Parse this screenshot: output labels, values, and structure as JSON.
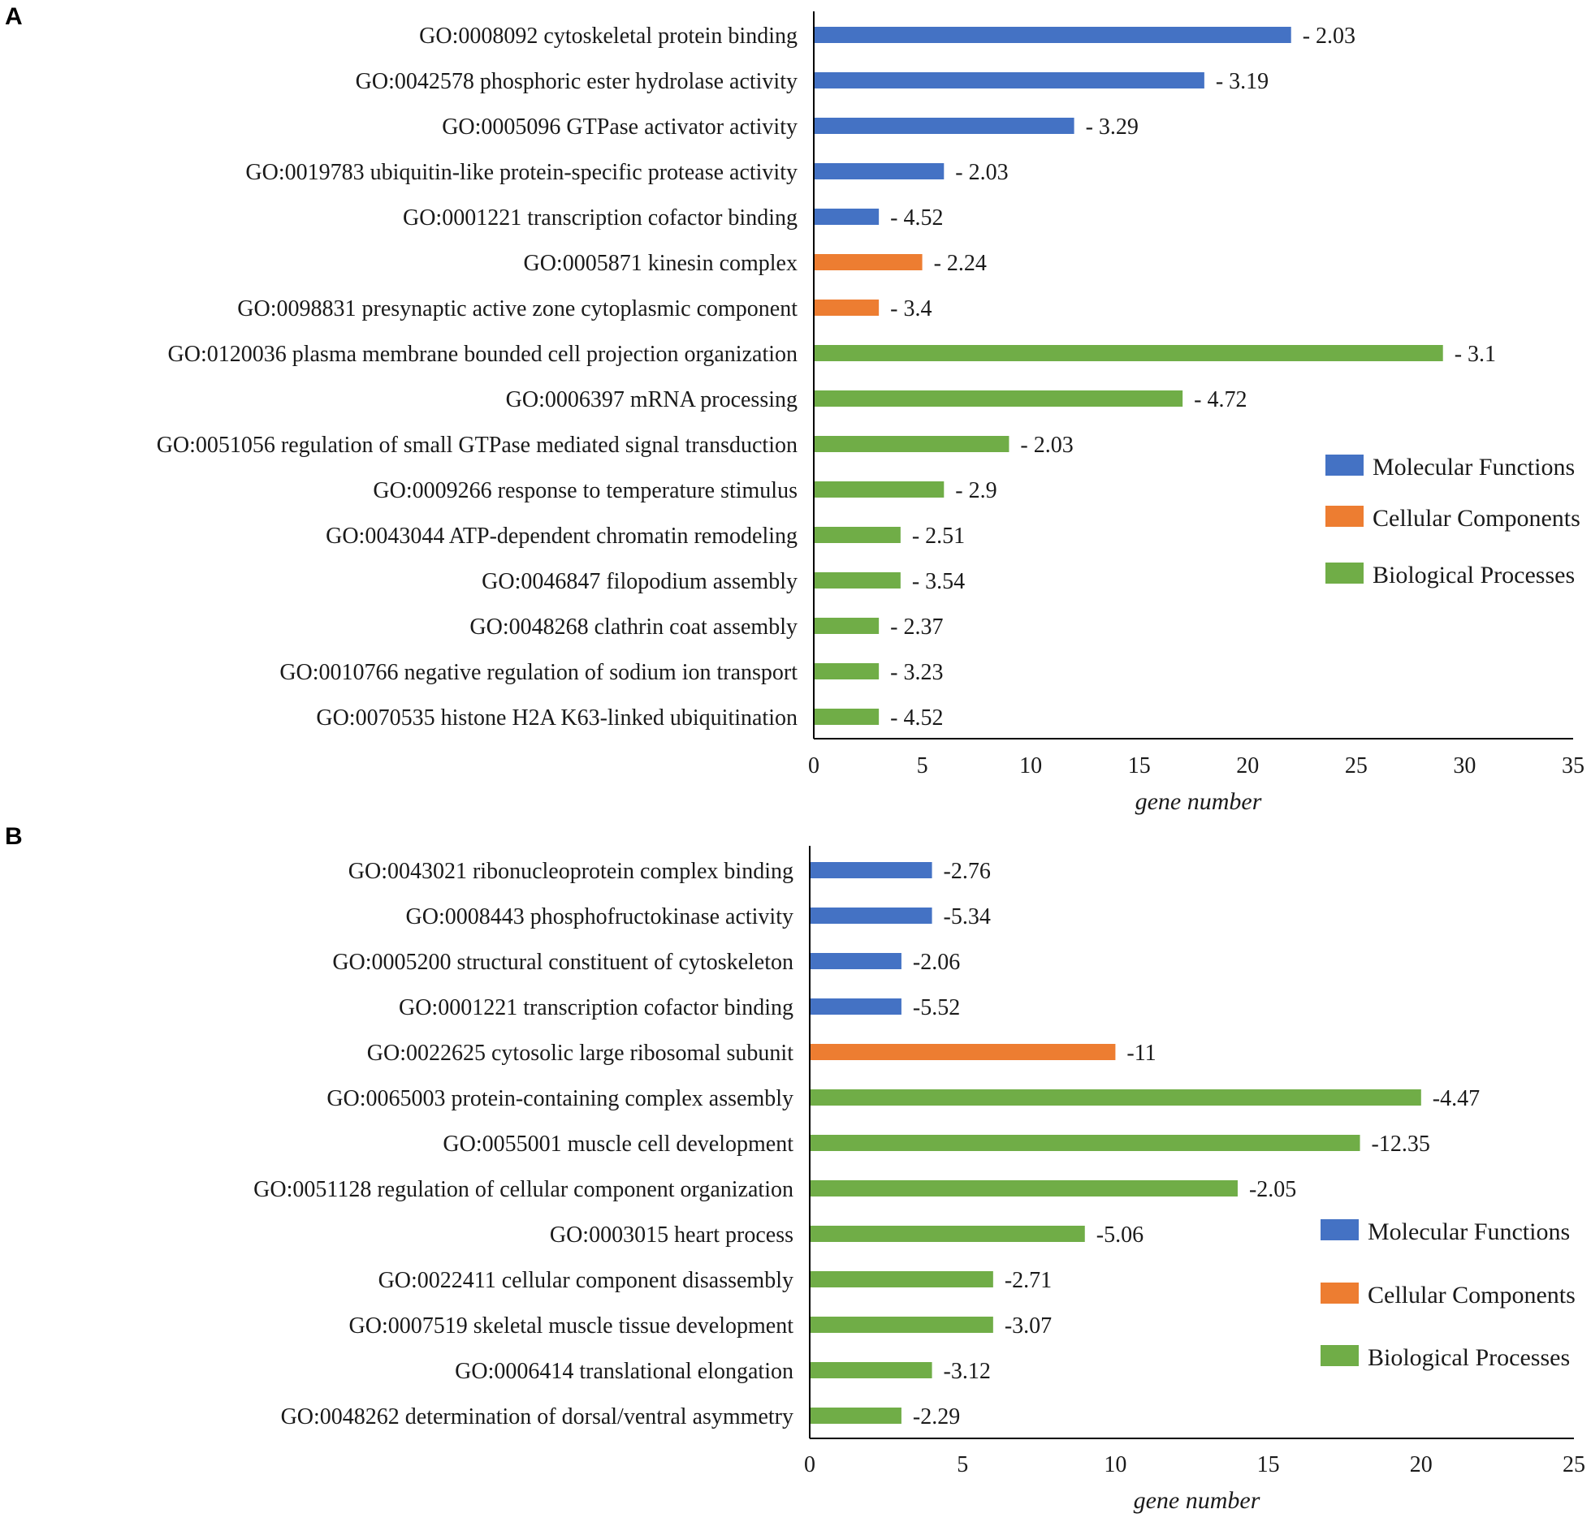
{
  "colors": {
    "Molecular Functions": "#4472C4",
    "Cellular Components": "#ED7D31",
    "Biological Processes": "#70AD47"
  },
  "chart_data": [
    {
      "type": "bar",
      "orientation": "horizontal",
      "panel": "A",
      "xlabel": "gene number",
      "xlim": [
        0,
        35
      ],
      "xticks": [
        0,
        5,
        10,
        15,
        20,
        25,
        30,
        35
      ],
      "legend": [
        "Molecular Functions",
        "Cellular Components",
        "Biological Processes"
      ],
      "legend_position": "right",
      "categories": [
        "GO:0008092 cytoskeletal protein binding",
        "GO:0042578 phosphoric ester hydrolase activity",
        "GO:0005096 GTPase activator activity",
        "GO:0019783 ubiquitin-like protein-specific protease activity",
        "GO:0001221 transcription cofactor binding",
        "GO:0005871 kinesin complex",
        "GO:0098831 presynaptic active zone cytoplasmic component",
        "GO:0120036 plasma membrane bounded cell projection organization",
        "GO:0006397 mRNA processing",
        "GO:0051056 regulation of small GTPase mediated signal transduction",
        "GO:0009266 response to temperature stimulus",
        "GO:0043044 ATP-dependent chromatin remodeling",
        "GO:0046847 filopodium assembly",
        "GO:0048268 clathrin coat assembly",
        "GO:0010766 negative regulation of sodium ion transport",
        "GO:0070535 histone H2A K63-linked ubiquitination"
      ],
      "values": [
        22,
        18,
        12,
        6,
        3,
        5,
        3,
        29,
        17,
        9,
        6,
        4,
        4,
        3,
        3,
        3
      ],
      "groups": [
        "Molecular Functions",
        "Molecular Functions",
        "Molecular Functions",
        "Molecular Functions",
        "Molecular Functions",
        "Cellular Components",
        "Cellular Components",
        "Biological Processes",
        "Biological Processes",
        "Biological Processes",
        "Biological Processes",
        "Biological Processes",
        "Biological Processes",
        "Biological Processes",
        "Biological Processes",
        "Biological Processes"
      ],
      "data_labels": [
        "- 2.03",
        "- 3.19",
        "- 3.29",
        "- 2.03",
        "- 4.52",
        "- 2.24",
        "- 3.4",
        "- 3.1",
        "- 4.72",
        "- 2.03",
        "- 2.9",
        "- 2.51",
        "- 3.54",
        "- 2.37",
        "- 3.23",
        "- 4.52"
      ]
    },
    {
      "type": "bar",
      "orientation": "horizontal",
      "panel": "B",
      "xlabel": "gene number",
      "xlim": [
        0,
        25
      ],
      "xticks": [
        0,
        5,
        10,
        15,
        20,
        25
      ],
      "legend": [
        "Molecular Functions",
        "Cellular Components",
        "Biological Processes"
      ],
      "legend_position": "right",
      "categories": [
        "GO:0043021 ribonucleoprotein complex binding",
        "GO:0008443 phosphofructokinase activity",
        "GO:0005200 structural constituent of cytoskeleton",
        "GO:0001221 transcription cofactor binding",
        "GO:0022625 cytosolic large ribosomal subunit",
        "GO:0065003 protein-containing complex assembly",
        "GO:0055001 muscle cell development",
        "GO:0051128 regulation of cellular component organization",
        "GO:0003015 heart process",
        "GO:0022411 cellular component disassembly",
        "GO:0007519 skeletal muscle tissue development",
        "GO:0006414 translational elongation",
        "GO:0048262 determination of dorsal/ventral asymmetry"
      ],
      "values": [
        4,
        4,
        3,
        3,
        10,
        20,
        18,
        14,
        9,
        6,
        6,
        4,
        3
      ],
      "groups": [
        "Molecular Functions",
        "Molecular Functions",
        "Molecular Functions",
        "Molecular Functions",
        "Cellular Components",
        "Biological Processes",
        "Biological Processes",
        "Biological Processes",
        "Biological Processes",
        "Biological Processes",
        "Biological Processes",
        "Biological Processes",
        "Biological Processes"
      ],
      "data_labels": [
        "-2.76",
        "-5.34",
        "-2.06",
        "-5.52",
        "-11",
        "-4.47",
        "-12.35",
        "-2.05",
        "-5.06",
        "-2.71",
        "-3.07",
        "-3.12",
        "-2.29"
      ]
    }
  ]
}
